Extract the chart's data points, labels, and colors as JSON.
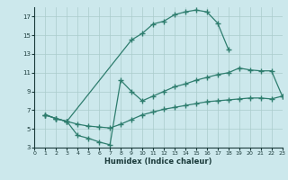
{
  "xlabel": "Humidex (Indice chaleur)",
  "bg_color": "#cce8ec",
  "grid_color": "#aacccc",
  "line_color": "#2e7d6e",
  "curve1_x": [
    1,
    2,
    3,
    9,
    10,
    11,
    12,
    13,
    14,
    15,
    16,
    17,
    18
  ],
  "curve1_y": [
    6.5,
    6.1,
    5.8,
    14.5,
    15.2,
    16.2,
    16.5,
    17.2,
    17.5,
    17.7,
    17.5,
    16.3,
    13.5
  ],
  "curve2_x": [
    1,
    2,
    3,
    4,
    5,
    6,
    7,
    8,
    9,
    10,
    11,
    12,
    13,
    14,
    15,
    16,
    17,
    18,
    19,
    20,
    21,
    22,
    23
  ],
  "curve2_y": [
    6.5,
    6.1,
    5.8,
    4.3,
    4.0,
    3.6,
    3.3,
    10.2,
    9.0,
    8.0,
    8.5,
    9.0,
    9.5,
    9.8,
    10.2,
    10.5,
    10.8,
    11.0,
    11.5,
    11.3,
    11.2,
    11.2,
    8.5
  ],
  "curve3_x": [
    1,
    2,
    3,
    4,
    5,
    6,
    7,
    8,
    9,
    10,
    11,
    12,
    13,
    14,
    15,
    16,
    17,
    18,
    19,
    20,
    21,
    22,
    23
  ],
  "curve3_y": [
    6.5,
    6.1,
    5.8,
    5.5,
    5.3,
    5.2,
    5.1,
    5.5,
    6.0,
    6.5,
    6.8,
    7.1,
    7.3,
    7.5,
    7.7,
    7.9,
    8.0,
    8.1,
    8.2,
    8.3,
    8.3,
    8.2,
    8.5
  ],
  "xlim": [
    0,
    23
  ],
  "ylim": [
    3,
    18
  ],
  "yticks": [
    3,
    5,
    7,
    9,
    11,
    13,
    15,
    17
  ],
  "xticks": [
    0,
    1,
    2,
    3,
    4,
    5,
    6,
    7,
    8,
    9,
    10,
    11,
    12,
    13,
    14,
    15,
    16,
    17,
    18,
    19,
    20,
    21,
    22,
    23
  ]
}
